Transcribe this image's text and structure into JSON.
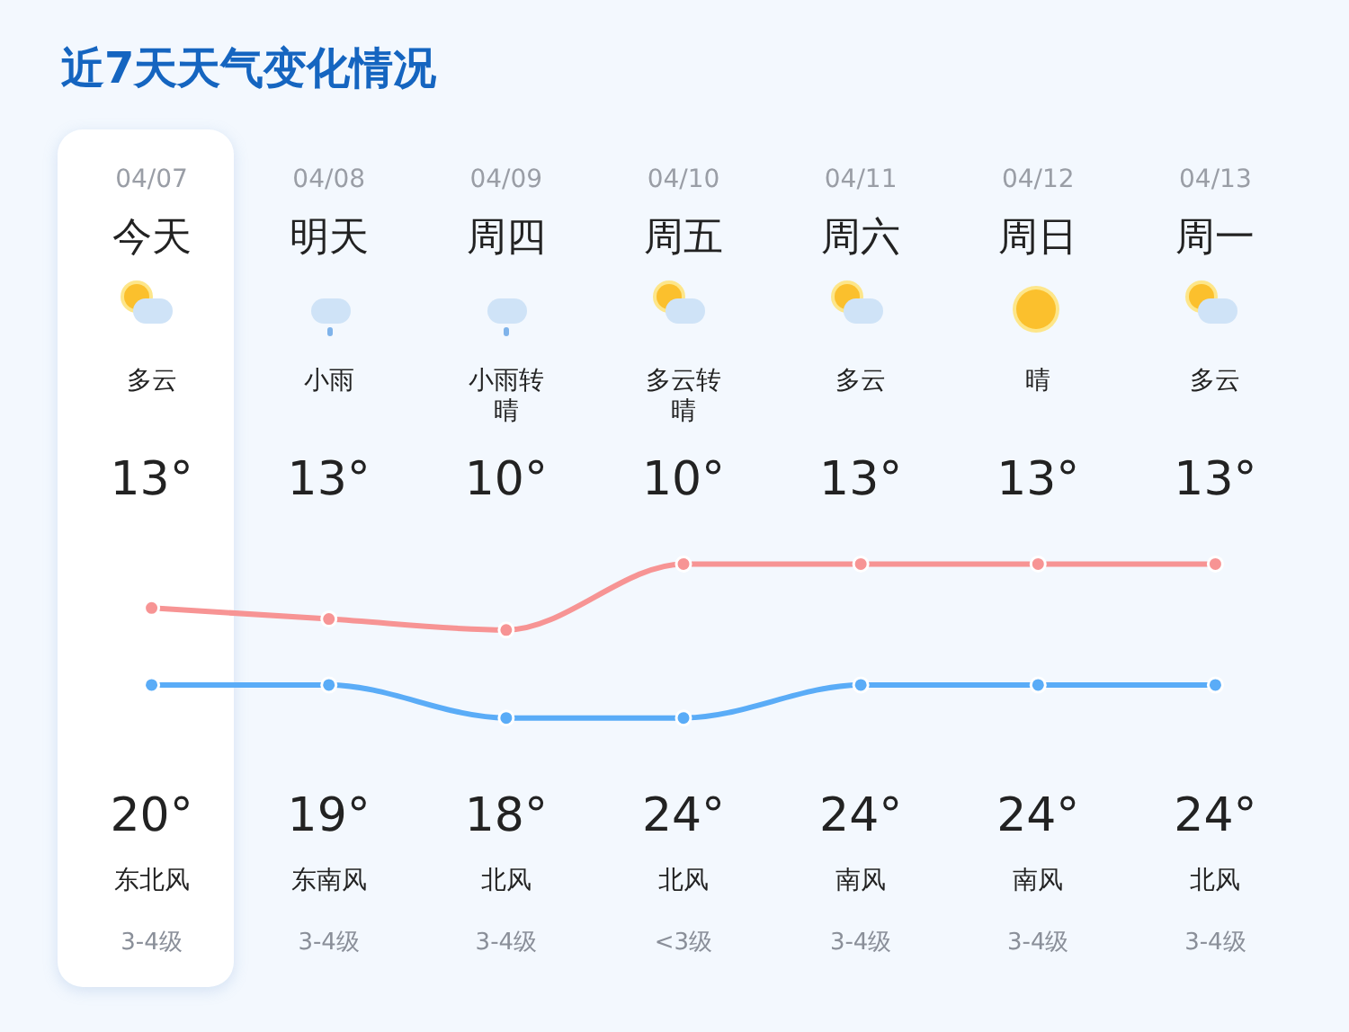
{
  "chart_data": {
    "type": "line",
    "title": "近7天天气变化情况",
    "categories": [
      "04/07",
      "04/08",
      "04/09",
      "04/10",
      "04/11",
      "04/12",
      "04/13"
    ],
    "series": [
      {
        "color": "#5aacf7",
        "values": [
          13,
          13,
          10,
          10,
          13,
          13,
          13
        ],
        "value_labels": [
          "13°",
          "13°",
          "10°",
          "10°",
          "13°",
          "13°",
          "13°"
        ]
      },
      {
        "color": "#f79494",
        "values": [
          20,
          19,
          18,
          24,
          24,
          24,
          24
        ],
        "value_labels": [
          "20°",
          "19°",
          "18°",
          "24°",
          "24°",
          "24°",
          "24°"
        ]
      }
    ],
    "legend": false,
    "marker": "circle",
    "line_style": "solid",
    "annotations": [
      "今天",
      "明天",
      "周四",
      "周五",
      "周六",
      "周日",
      "周一",
      "多云",
      "小雨",
      "小雨转晴",
      "多云转晴",
      "多云",
      "晴",
      "多云",
      "东北风",
      "东南风",
      "北风",
      "北风",
      "南风",
      "南风",
      "北风",
      "3-4级",
      "3-4级",
      "3-4级",
      "<3级",
      "3-4级",
      "3-4级",
      "3-4级"
    ]
  }
}
